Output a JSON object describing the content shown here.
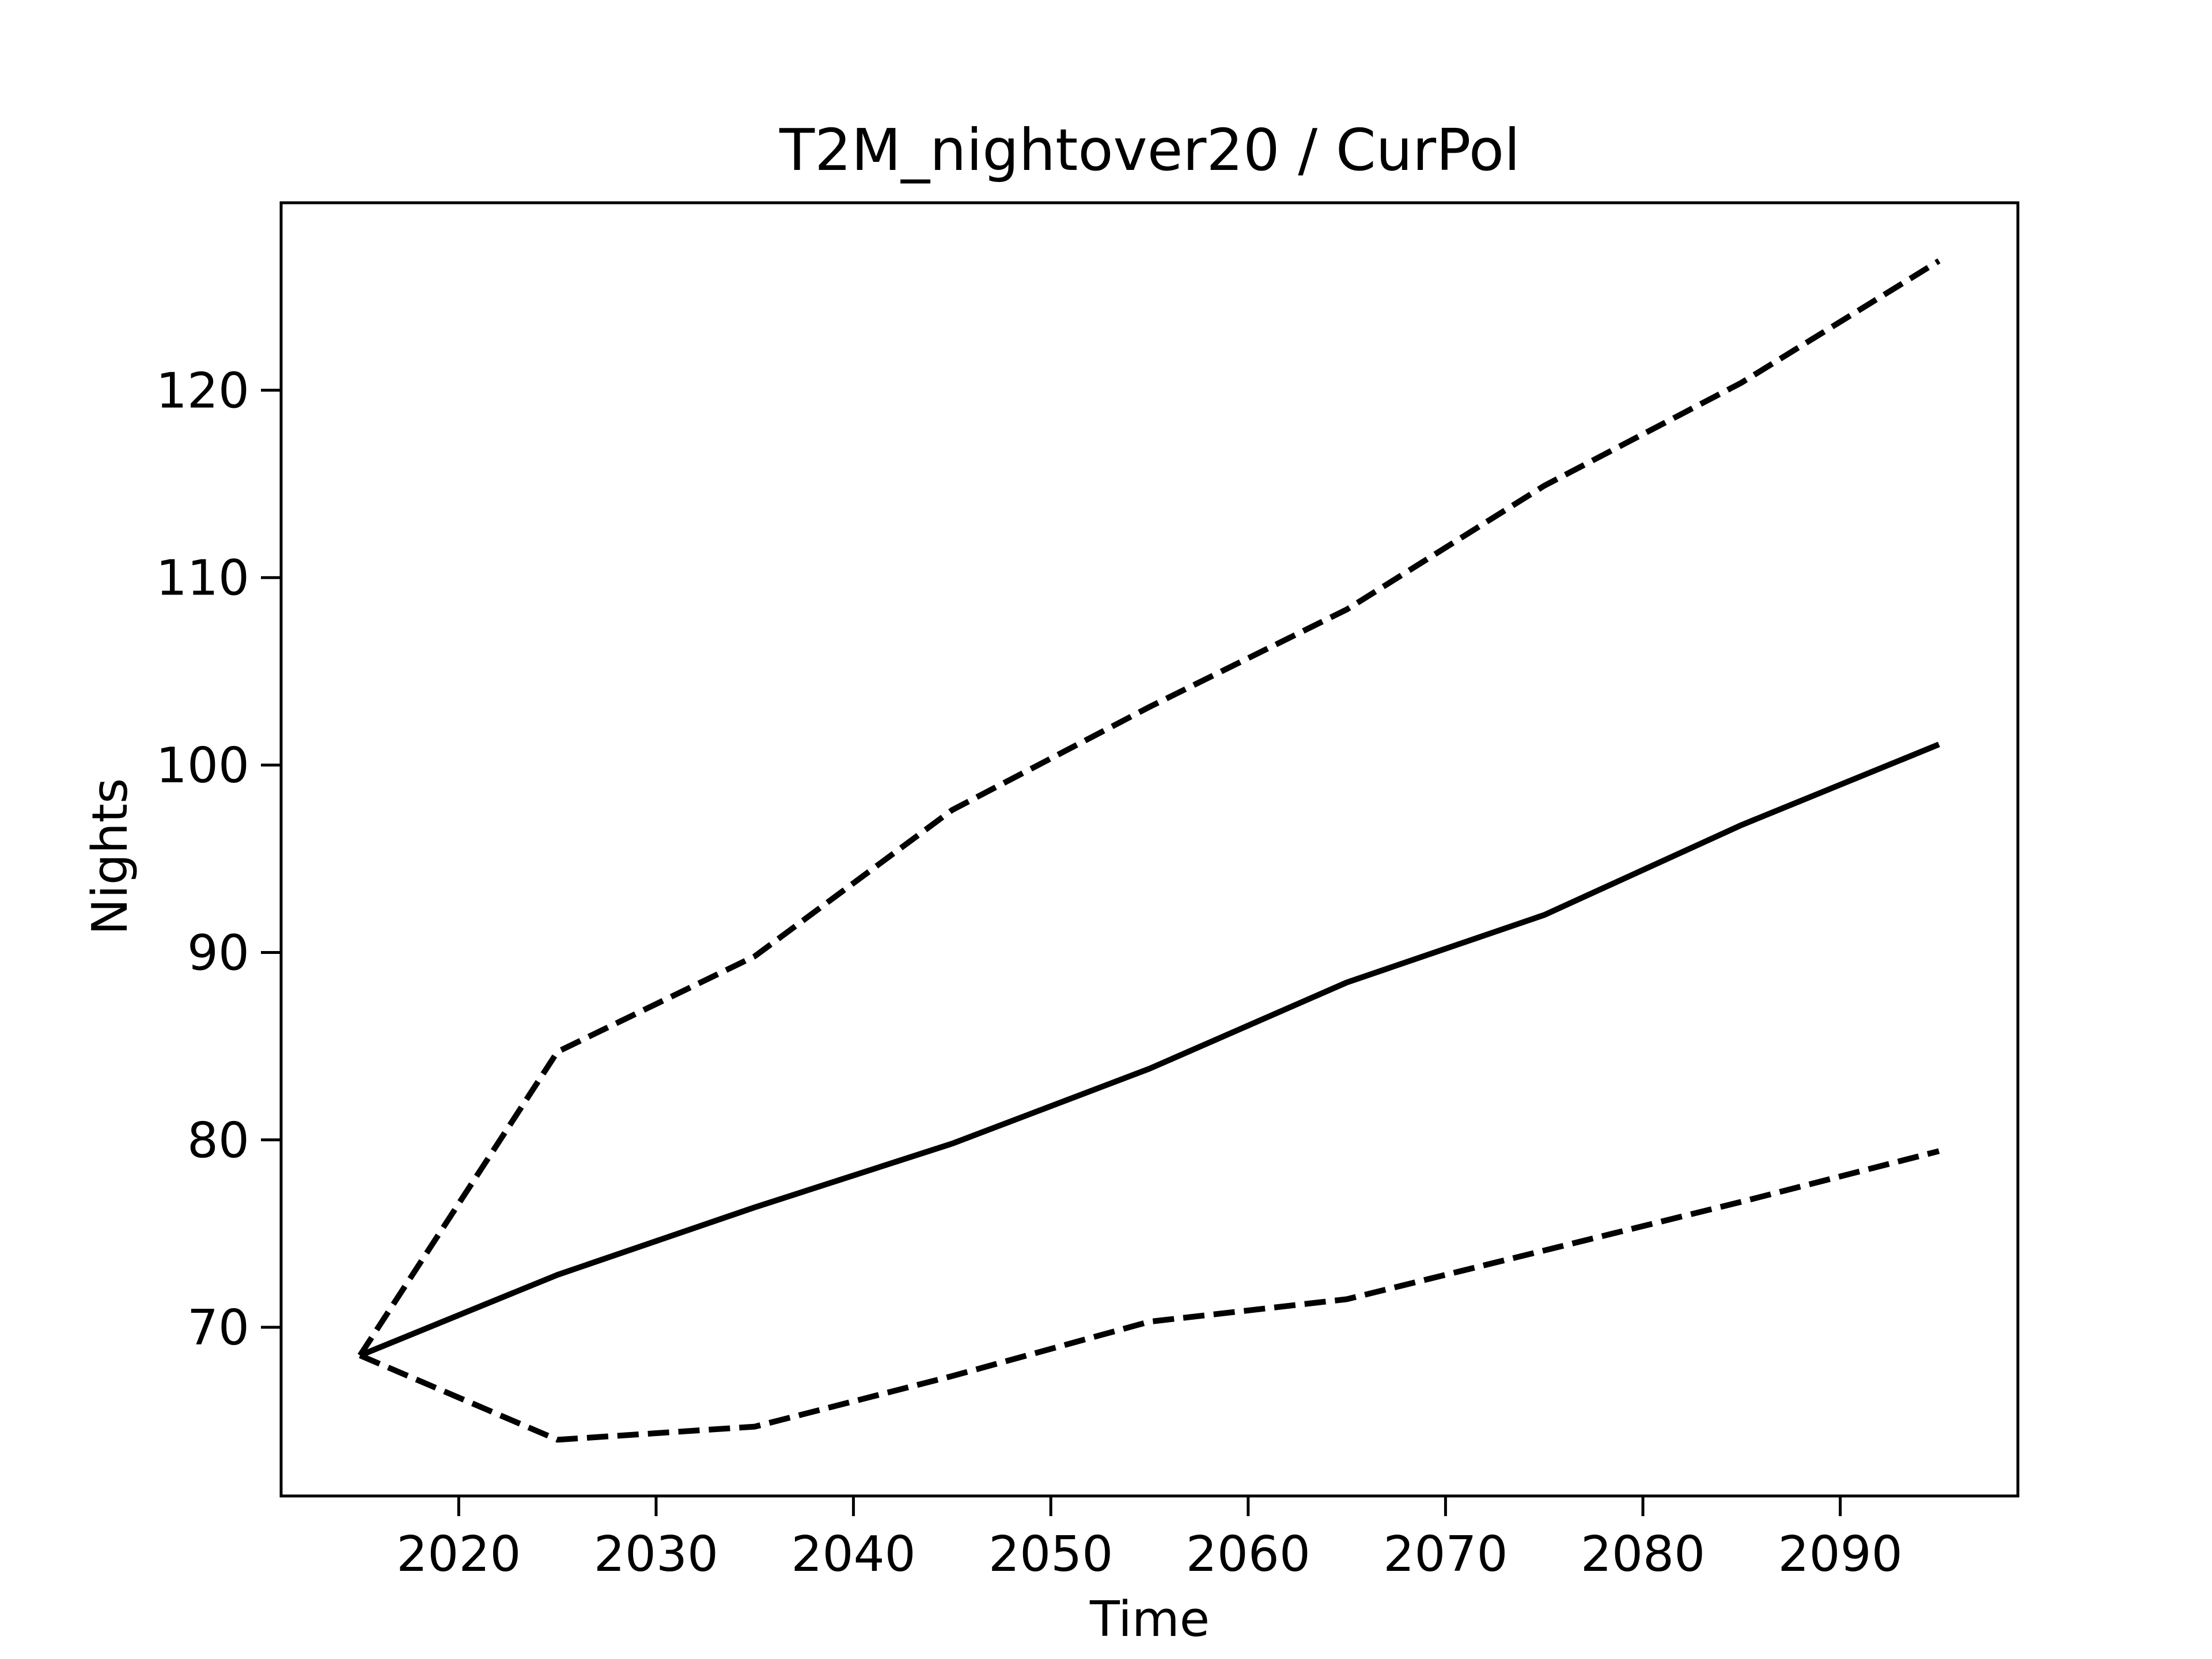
{
  "chart_data": {
    "type": "line",
    "title": "T2M_nightover20 / CurPol",
    "xlabel": "Time",
    "ylabel": "Nights",
    "xlim": [
      2011,
      2099
    ],
    "ylim": [
      61,
      130
    ],
    "x_ticks": [
      2020,
      2030,
      2040,
      2050,
      2060,
      2070,
      2080,
      2090
    ],
    "y_ticks": [
      70,
      80,
      90,
      100,
      110,
      120
    ],
    "x": [
      2015,
      2025,
      2035,
      2045,
      2055,
      2065,
      2075,
      2085,
      2095
    ],
    "series": [
      {
        "style": "dashed",
        "color": "#000000",
        "values": [
          68.5,
          84.7,
          89.8,
          97.6,
          103.1,
          108.3,
          114.9,
          120.4,
          126.9
        ]
      },
      {
        "style": "solid",
        "color": "#000000",
        "values": [
          68.5,
          72.8,
          76.4,
          79.8,
          83.8,
          88.4,
          92.0,
          96.8,
          101.1
        ]
      },
      {
        "style": "dashed",
        "color": "#000000",
        "values": [
          68.5,
          64.0,
          64.7,
          67.4,
          70.3,
          71.5,
          74.1,
          76.7,
          79.4
        ]
      }
    ],
    "grid": false,
    "legend": false
  }
}
